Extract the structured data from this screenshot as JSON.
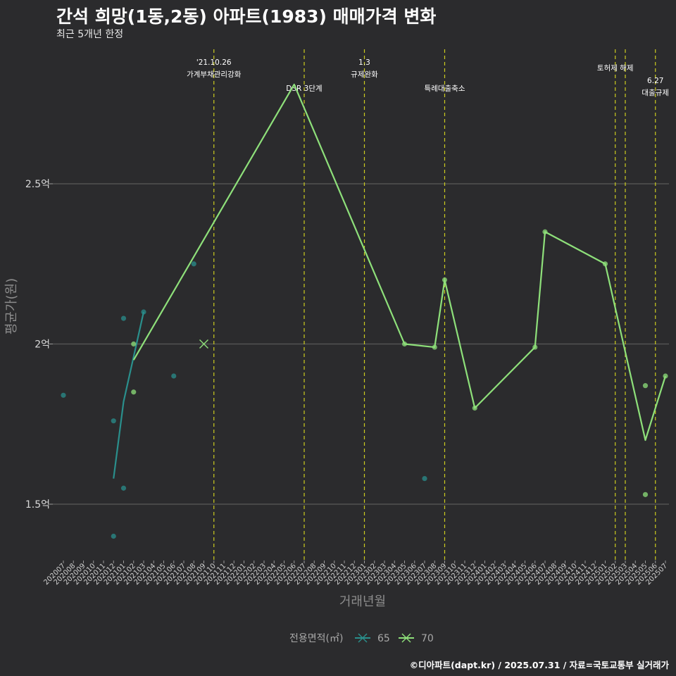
{
  "header": {
    "title": "간석 희망(1동,2동) 아파트(1983) 매매가격 변화",
    "subtitle": "최근 5개년 한정"
  },
  "caption": "©디아파트(dapt.kr) / 2025.07.31 / 자료=국토교통부 실거래가",
  "colors": {
    "background": "#2b2b2d",
    "grid": "#5a5a5a",
    "series_65": "#2a8f8c",
    "series_70": "#8ee07a",
    "event_line": "#cccc1f"
  },
  "chart_data": {
    "type": "line",
    "title": "간석 희망(1동,2동) 아파트(1983) 매매가격 변화",
    "xlabel": "거래년월",
    "ylabel": "평균가(원)",
    "ylim": [
      1.33,
      2.82
    ],
    "yticks": [
      {
        "value": 1.5,
        "label": "1.5억"
      },
      {
        "value": 2.0,
        "label": "2억"
      },
      {
        "value": 2.5,
        "label": "2.5억"
      }
    ],
    "categories": [
      "202007",
      "202008",
      "202009",
      "202010",
      "202011",
      "202012",
      "202101",
      "202102",
      "202103",
      "202104",
      "202105",
      "202106",
      "202107",
      "202108",
      "202109",
      "202110",
      "202111",
      "202112",
      "202201",
      "202202",
      "202203",
      "202204",
      "202205",
      "202206",
      "202207",
      "202208",
      "202209",
      "202210",
      "202211",
      "202212",
      "202301",
      "202302",
      "202303",
      "202304",
      "202305",
      "202306",
      "202307",
      "202308",
      "202309",
      "202310",
      "202311",
      "202312",
      "202401",
      "202402",
      "202403",
      "202404",
      "202405",
      "202406",
      "202407",
      "202408",
      "202409",
      "202410",
      "202411",
      "202412",
      "202501",
      "202502",
      "202503",
      "202504",
      "202505",
      "202506",
      "202507"
    ],
    "legend": {
      "title": "전용면적(㎡)",
      "items": [
        {
          "name": "65",
          "color": "#2a8f8c"
        },
        {
          "name": "70",
          "color": "#8ee07a"
        }
      ]
    },
    "series": [
      {
        "name": "65",
        "color": "#2a8f8c",
        "line": [
          {
            "x": "202012",
            "y": 1.58
          },
          {
            "x": "202101",
            "y": 1.82
          },
          {
            "x": "202102",
            "y": 1.96
          },
          {
            "x": "202103",
            "y": 2.1
          }
        ],
        "points": [
          {
            "x": "202007",
            "y": 1.84
          },
          {
            "x": "202012",
            "y": 1.76
          },
          {
            "x": "202012",
            "y": 1.4
          },
          {
            "x": "202101",
            "y": 2.08
          },
          {
            "x": "202101",
            "y": 1.55
          },
          {
            "x": "202103",
            "y": 2.1
          },
          {
            "x": "202106",
            "y": 1.9
          },
          {
            "x": "202108",
            "y": 2.25
          },
          {
            "x": "202307",
            "y": 1.58
          }
        ]
      },
      {
        "name": "70",
        "color": "#8ee07a",
        "line": [
          {
            "x": "202102",
            "y": 1.95
          },
          {
            "x": "202206",
            "y": 2.81
          },
          {
            "x": "202305",
            "y": 2.0
          },
          {
            "x": "202308",
            "y": 1.99
          },
          {
            "x": "202309",
            "y": 2.2
          },
          {
            "x": "202312",
            "y": 1.8
          },
          {
            "x": "202406",
            "y": 1.99
          },
          {
            "x": "202407",
            "y": 2.35
          },
          {
            "x": "202501",
            "y": 2.25
          },
          {
            "x": "202505",
            "y": 1.7
          },
          {
            "x": "202507",
            "y": 1.9
          }
        ],
        "points": [
          {
            "x": "202102",
            "y": 2.0
          },
          {
            "x": "202102",
            "y": 1.85
          },
          {
            "x": "202305",
            "y": 2.0
          },
          {
            "x": "202308",
            "y": 1.99
          },
          {
            "x": "202309",
            "y": 2.2
          },
          {
            "x": "202312",
            "y": 1.8
          },
          {
            "x": "202406",
            "y": 1.99
          },
          {
            "x": "202407",
            "y": 2.35
          },
          {
            "x": "202501",
            "y": 2.25
          },
          {
            "x": "202505",
            "y": 1.87
          },
          {
            "x": "202505",
            "y": 1.53
          },
          {
            "x": "202507",
            "y": 1.9
          }
        ],
        "crosses": [
          {
            "x": "202109",
            "y": 2.0
          }
        ]
      }
    ],
    "events": [
      {
        "x": 15.0,
        "lines": [
          "'21.10.26",
          "가계부채관리강화"
        ],
        "row": 0
      },
      {
        "x": 24.0,
        "lines": [
          "DSR 3단계"
        ],
        "row": 2
      },
      {
        "x": 30.0,
        "lines": [
          "1.3",
          "규제완화"
        ],
        "row": 0
      },
      {
        "x": 38.0,
        "lines": [
          "특례대출축소"
        ],
        "row": 2
      },
      {
        "x": 55.0,
        "lines": [
          "토허제 해제"
        ],
        "row": 1
      },
      {
        "x": 56.0,
        "lines": [],
        "row": 1
      },
      {
        "x": 59.0,
        "lines": [
          "6.27",
          "대출규제"
        ],
        "row": 3
      }
    ]
  }
}
